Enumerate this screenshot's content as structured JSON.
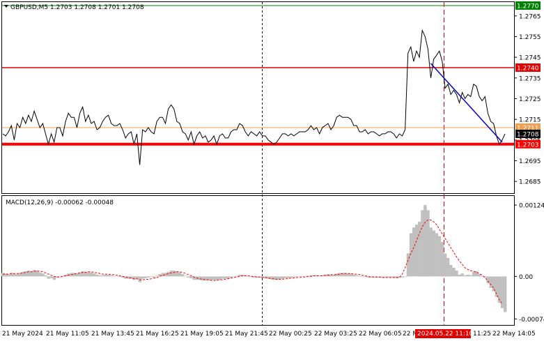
{
  "header": {
    "symbol_line": "GBPUSD,M5  1.2703 1.2708 1.2701 1.2708"
  },
  "macd_header": "MACD(12,26,9) -0.00062 -0.00048",
  "colors": {
    "price_line": "#000000",
    "support_red": "#ff0000",
    "resistance_red": "#e00000",
    "top_green": "#008000",
    "orange_level": "#f0a050",
    "trend_blue": "#0000cc",
    "macd_hist": "#c0c0c0",
    "macd_signal": "#ff0000"
  },
  "price_axis": {
    "ticks": [
      "1.2765",
      "1.2755",
      "1.2745",
      "1.2735",
      "1.2725",
      "1.2715",
      "1.2705",
      "1.2695",
      "1.2685"
    ],
    "tick_values": [
      1.2765,
      1.2755,
      1.2745,
      1.2735,
      1.2725,
      1.2715,
      1.2705,
      1.2695,
      1.2685
    ],
    "min": 1.268,
    "max": 1.2771
  },
  "levels": [
    {
      "name": "top-green",
      "price": 1.277,
      "label": "1.2770",
      "color": "#008000"
    },
    {
      "name": "resistance",
      "price": 1.274,
      "label": "1.2740",
      "color": "#e00000"
    },
    {
      "name": "orange",
      "price": 1.2711,
      "label": "1.2711",
      "color": "#f0a050"
    },
    {
      "name": "support",
      "price": 1.2703,
      "label": "1.2703",
      "color": "#ff0000"
    }
  ],
  "current_price": {
    "price": 1.2708,
    "label": "1.2708"
  },
  "macd_axis": {
    "ticks": [
      "0.00124",
      "0.00",
      "-0.00074"
    ],
    "tick_values": [
      0.00124,
      0.0,
      -0.00074
    ],
    "min": -0.00082,
    "max": 0.00135
  },
  "time_axis": {
    "labels": [
      "21 May 2024",
      "21 May 11:05",
      "21 May 13:45",
      "21 May 16:25",
      "21 May 19:05",
      "21 May 21:45",
      "22 May 00:25",
      "22 May 03:25",
      "22 May 06:05",
      "22 M",
      "2024.05.22 11:10",
      "11:25",
      "22 May 14:05"
    ],
    "highlight_label": "2024.05.22 11:10"
  },
  "chart_data": {
    "type": "line",
    "x_count": 180,
    "price": [
      1.2708,
      1.2707,
      1.2709,
      1.2712,
      1.2705,
      1.2713,
      1.2711,
      1.2716,
      1.2713,
      1.2717,
      1.2714,
      1.2719,
      1.2715,
      1.2711,
      1.2713,
      1.2708,
      1.2703,
      1.2708,
      1.2704,
      1.2711,
      1.2711,
      1.2707,
      1.2714,
      1.2718,
      1.2716,
      1.2716,
      1.2711,
      1.2718,
      1.2721,
      1.2714,
      1.2717,
      1.2713,
      1.2714,
      1.271,
      1.2711,
      1.2714,
      1.2716,
      1.2717,
      1.2713,
      1.2712,
      1.2712,
      1.2713,
      1.271,
      1.2706,
      1.2708,
      1.2709,
      1.2703,
      1.2708,
      1.2693,
      1.271,
      1.2709,
      1.2711,
      1.2709,
      1.2708,
      1.2714,
      1.2716,
      1.2716,
      1.2713,
      1.272,
      1.2722,
      1.272,
      1.2714,
      1.2713,
      1.2709,
      1.2708,
      1.2705,
      1.2709,
      1.2703,
      1.2707,
      1.2709,
      1.2706,
      1.2707,
      1.2704,
      1.2705,
      1.2707,
      1.2703,
      1.2707,
      1.2708,
      1.2706,
      1.2706,
      1.2709,
      1.271,
      1.271,
      1.2713,
      1.2712,
      1.2709,
      1.2707,
      1.2709,
      1.2708,
      1.2707,
      1.2709,
      1.2707,
      1.2707,
      1.2705,
      1.2704,
      1.2703,
      1.2704,
      1.2706,
      1.2708,
      1.2708,
      1.2707,
      1.2708,
      1.2707,
      1.2708,
      1.2709,
      1.2709,
      1.2709,
      1.271,
      1.2712,
      1.271,
      1.2711,
      1.2708,
      1.2711,
      1.2712,
      1.2713,
      1.271,
      1.2712,
      1.2716,
      1.2717,
      1.2716,
      1.2716,
      1.2716,
      1.2715,
      1.2712,
      1.2712,
      1.2709,
      1.2709,
      1.271,
      1.2708,
      1.2709,
      1.2709,
      1.2708,
      1.2707,
      1.2708,
      1.2708,
      1.2709,
      1.2709,
      1.2708,
      1.2706,
      1.2708,
      1.2707,
      1.271,
      1.2747,
      1.275,
      1.2743,
      1.2748,
      1.2745,
      1.2758,
      1.2755,
      1.2749,
      1.2735,
      1.2744,
      1.2746,
      1.2748,
      1.2743,
      1.273,
      1.2732,
      1.2727,
      1.2729,
      1.2727,
      1.2723,
      1.2728,
      1.2725,
      1.2727,
      1.2726,
      1.2732,
      1.2731,
      1.2726,
      1.2724,
      1.2726,
      1.2718,
      1.2714,
      1.2713,
      1.2707,
      1.2703,
      1.2705,
      1.2708
    ],
    "macd_hist": [
      6e-05,
      5e-05,
      4e-05,
      6e-05,
      5e-05,
      4e-05,
      6e-05,
      8e-05,
      9e-05,
      0.0001,
      9e-05,
      0.00011,
      0.0001,
      7e-05,
      5e-05,
      2e-05,
      -4e-05,
      -3e-05,
      -6e-05,
      -2e-05,
      0.0,
      1e-05,
      3e-05,
      5e-05,
      6e-05,
      6e-05,
      5e-05,
      7e-05,
      9e-05,
      8e-05,
      8e-05,
      7e-05,
      5e-05,
      3e-05,
      2e-05,
      2e-05,
      3e-05,
      3e-05,
      2e-05,
      1e-05,
      0.0,
      -1e-05,
      -2e-05,
      -4e-05,
      -4e-05,
      -4e-05,
      -6e-05,
      -5e-05,
      -0.0001,
      -4e-05,
      -3e-05,
      -2e-05,
      -1e-05,
      -2e-05,
      1e-05,
      4e-05,
      6e-05,
      6e-05,
      8e-05,
      0.0001,
      0.0001,
      9e-05,
      7e-05,
      4e-05,
      1e-05,
      -2e-05,
      -3e-05,
      -6e-05,
      -6e-05,
      -6e-05,
      -7e-05,
      -7e-05,
      -7e-05,
      -7e-05,
      -6e-05,
      -7e-05,
      -6e-05,
      -4e-05,
      -4e-05,
      -4e-05,
      -2e-05,
      0.0,
      1e-05,
      3e-05,
      3e-05,
      2e-05,
      0.0,
      -1e-05,
      -2e-05,
      -2e-05,
      -2e-05,
      -3e-05,
      -3e-05,
      -4e-05,
      -5e-05,
      -6e-05,
      -6e-05,
      -5e-05,
      -4e-05,
      -3e-05,
      -3e-05,
      -2e-05,
      -2e-05,
      -1e-05,
      0.0,
      0.0,
      0.0,
      1e-05,
      2e-05,
      2e-05,
      2e-05,
      1e-05,
      2e-05,
      3e-05,
      4e-05,
      3e-05,
      3e-05,
      5e-05,
      6e-05,
      6e-05,
      6e-05,
      5e-05,
      5e-05,
      3e-05,
      2e-05,
      0.0,
      -1e-05,
      -1e-05,
      -2e-05,
      -2e-05,
      -2e-05,
      -2e-05,
      -2e-05,
      -2e-05,
      -2e-05,
      -2e-05,
      -2e-05,
      -2e-05,
      -3e-05,
      -2e-05,
      -2e-05,
      -1e-05,
      0.0004,
      0.00075,
      0.00085,
      0.0009,
      0.00095,
      0.00115,
      0.00124,
      0.00115,
      0.00085,
      0.0008,
      0.00075,
      0.0007,
      0.0006,
      0.0004,
      0.00032,
      0.0002,
      0.00015,
      0.0001,
      3e-05,
      5e-05,
      2e-05,
      3e-05,
      2e-05,
      8e-05,
      9e-05,
      4e-05,
      -1e-05,
      -2e-05,
      -0.00012,
      -0.0002,
      -0.00026,
      -0.00036,
      -0.00046,
      -0.00055,
      -0.00062
    ],
    "macd_signal": [
      4e-05,
      4e-05,
      4e-05,
      5e-05,
      5e-05,
      5e-05,
      5e-05,
      6e-05,
      7e-05,
      8e-05,
      8e-05,
      9e-05,
      9e-05,
      9e-05,
      8e-05,
      6e-05,
      4e-05,
      2e-05,
      0.0,
      -1e-05,
      -1e-05,
      0.0,
      1e-05,
      2e-05,
      3e-05,
      4e-05,
      5e-05,
      6e-05,
      7e-05,
      7e-05,
      8e-05,
      8e-05,
      7e-05,
      6e-05,
      5e-05,
      4e-05,
      4e-05,
      4e-05,
      3e-05,
      3e-05,
      2e-05,
      1e-05,
      0.0,
      -1e-05,
      -2e-05,
      -3e-05,
      -4e-05,
      -4e-05,
      -6e-05,
      -6e-05,
      -5e-05,
      -5e-05,
      -4e-05,
      -3e-05,
      -2e-05,
      0.0,
      2e-05,
      3e-05,
      5e-05,
      6e-05,
      7e-05,
      8e-05,
      8e-05,
      7e-05,
      5e-05,
      3e-05,
      1e-05,
      -1e-05,
      -3e-05,
      -4e-05,
      -5e-05,
      -6e-05,
      -6e-05,
      -7e-05,
      -7e-05,
      -7e-05,
      -6e-05,
      -6e-05,
      -5e-05,
      -4e-05,
      -3e-05,
      -2e-05,
      -1e-05,
      0.0,
      1e-05,
      1e-05,
      1e-05,
      0.0,
      0.0,
      -1e-05,
      -1e-05,
      -2e-05,
      -2e-05,
      -3e-05,
      -4e-05,
      -4e-05,
      -5e-05,
      -5e-05,
      -5e-05,
      -4e-05,
      -4e-05,
      -3e-05,
      -3e-05,
      -2e-05,
      -2e-05,
      -1e-05,
      -1e-05,
      0.0,
      0.0,
      1e-05,
      1e-05,
      1e-05,
      1e-05,
      2e-05,
      2e-05,
      3e-05,
      3e-05,
      3e-05,
      4e-05,
      5e-05,
      5e-05,
      5e-05,
      5e-05,
      4e-05,
      4e-05,
      3e-05,
      2e-05,
      1e-05,
      0.0,
      -1e-05,
      -1e-05,
      -1e-05,
      -1e-05,
      -2e-05,
      -2e-05,
      -2e-05,
      -2e-05,
      -2e-05,
      -2e-05,
      -2e-05,
      4e-05,
      0.00015,
      0.00028,
      0.0004,
      0.0005,
      0.00062,
      0.00075,
      0.00086,
      0.00094,
      0.00098,
      0.00098,
      0.00095,
      0.0009,
      0.00082,
      0.00074,
      0.00066,
      0.00058,
      0.0005,
      0.00042,
      0.00034,
      0.00027,
      0.00021,
      0.00015,
      0.00012,
      0.0001,
      9e-05,
      7e-05,
      5e-05,
      2e-05,
      -2e-05,
      -8e-05,
      -0.00014,
      -0.0002,
      -0.0003,
      -0.0004,
      -0.00048
    ],
    "trend_line": {
      "from_index": 150,
      "from_price": 1.2742,
      "to_index": 175,
      "to_price": 1.2704
    },
    "ylim": [
      1.268,
      1.2771
    ]
  }
}
